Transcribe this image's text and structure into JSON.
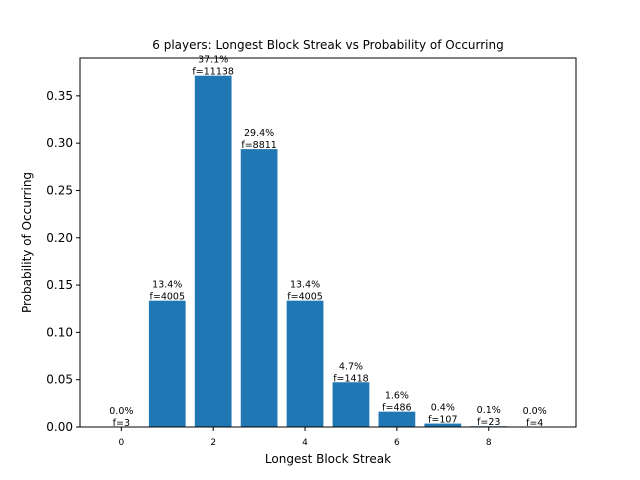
{
  "chart_data": {
    "type": "bar",
    "title": "6 players: Longest Block Streak vs Probability of Occurring",
    "xlabel": "Longest Block Streak",
    "ylabel": "Probability of Occurring",
    "categories": [
      0,
      1,
      2,
      3,
      4,
      5,
      6,
      7,
      8,
      9
    ],
    "values": [
      0.0001,
      0.1335,
      0.3713,
      0.2937,
      0.1335,
      0.0473,
      0.0162,
      0.0036,
      0.0008,
      0.0001
    ],
    "data_labels": [
      {
        "pct": "0.0%",
        "freq": "f=3"
      },
      {
        "pct": "13.4%",
        "freq": "f=4005"
      },
      {
        "pct": "37.1%",
        "freq": "f=11138"
      },
      {
        "pct": "29.4%",
        "freq": "f=8811"
      },
      {
        "pct": "13.4%",
        "freq": "f=4005"
      },
      {
        "pct": "4.7%",
        "freq": "f=1418"
      },
      {
        "pct": "1.6%",
        "freq": "f=486"
      },
      {
        "pct": "0.4%",
        "freq": "f=107"
      },
      {
        "pct": "0.1%",
        "freq": "f=23"
      },
      {
        "pct": "0.0%",
        "freq": "f=4"
      }
    ],
    "xticks": [
      "0",
      "2",
      "4",
      "6",
      "8"
    ],
    "yticks": [
      "0.00",
      "0.05",
      "0.10",
      "0.15",
      "0.20",
      "0.25",
      "0.30",
      "0.35"
    ],
    "xlim": [
      -0.9,
      9.9
    ],
    "ylim": [
      0,
      0.39
    ],
    "bar_color": "#1f77b4",
    "grid": false,
    "legend": "none"
  }
}
